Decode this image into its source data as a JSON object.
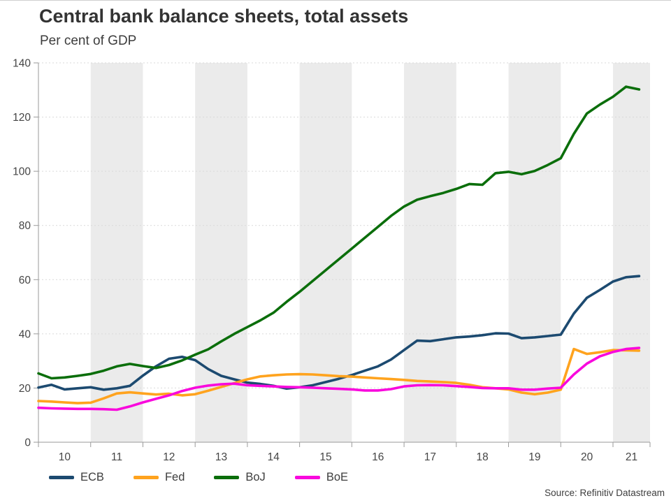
{
  "chart": {
    "title": "Central bank balance sheets, total assets",
    "subtitle": "Per cent of GDP",
    "source": "Source: Refinitiv Datastream"
  },
  "chart_data": {
    "type": "line",
    "title": "Central bank balance sheets, total assets",
    "subtitle": "Per cent of GDP",
    "xlabel": "",
    "ylabel": "Per cent of GDP",
    "ylim": [
      0,
      140
    ],
    "y_ticks": [
      0,
      20,
      40,
      60,
      80,
      100,
      120,
      140
    ],
    "x_tick_labels": [
      "10",
      "11",
      "12",
      "13",
      "14",
      "15",
      "16",
      "17",
      "18",
      "19",
      "20",
      "21"
    ],
    "xlim": [
      2010,
      2021.71
    ],
    "shaded_years": [
      2011,
      2013,
      2015,
      2017,
      2019,
      2021
    ],
    "grid": "horizontal-dashed",
    "legend_position": "bottom-left",
    "colors": {
      "band": "#ebebeb",
      "gridline": "#d9d9d9",
      "axis": "#9a9a9a",
      "text": "#454545"
    },
    "x": [
      2010,
      2010.25,
      2010.5,
      2010.75,
      2011,
      2011.25,
      2011.5,
      2011.75,
      2012,
      2012.25,
      2012.5,
      2012.75,
      2013,
      2013.25,
      2013.5,
      2013.75,
      2014,
      2014.25,
      2014.5,
      2014.75,
      2015,
      2015.25,
      2015.5,
      2015.75,
      2016,
      2016.25,
      2016.5,
      2016.75,
      2017,
      2017.25,
      2017.5,
      2017.75,
      2018,
      2018.25,
      2018.5,
      2018.75,
      2019,
      2019.25,
      2019.5,
      2019.75,
      2020,
      2020.25,
      2020.5,
      2020.75,
      2021,
      2021.25,
      2021.5
    ],
    "series": [
      {
        "name": "ECB",
        "color": "#1c4a70",
        "values": [
          20.2,
          21.2,
          19.5,
          19.9,
          20.3,
          19.4,
          19.9,
          20.8,
          24.6,
          28.0,
          30.8,
          31.5,
          30.3,
          27.0,
          24.5,
          23.2,
          22.0,
          21.5,
          20.8,
          19.8,
          20.3,
          21.0,
          22.2,
          23.4,
          24.8,
          26.4,
          28.0,
          30.5,
          34.0,
          37.5,
          37.3,
          38.0,
          38.7,
          39.0,
          39.5,
          40.2,
          40.1,
          38.4,
          38.7,
          39.2,
          39.7,
          47.5,
          53.3,
          56.2,
          59.3,
          60.9,
          61.3
        ]
      },
      {
        "name": "Fed",
        "color": "#ffa31e",
        "values": [
          15.2,
          15.0,
          14.7,
          14.4,
          14.6,
          16.2,
          18.0,
          18.4,
          18.0,
          17.6,
          17.9,
          17.3,
          17.7,
          19.0,
          20.4,
          21.8,
          23.2,
          24.3,
          24.7,
          25.0,
          25.1,
          25.0,
          24.7,
          24.4,
          24.2,
          23.9,
          23.6,
          23.3,
          23.0,
          22.6,
          22.4,
          22.2,
          21.9,
          21.2,
          20.3,
          19.9,
          19.5,
          18.3,
          17.7,
          18.3,
          19.4,
          34.4,
          32.6,
          33.2,
          34.0,
          33.9,
          33.8
        ]
      },
      {
        "name": "BoJ",
        "color": "#0b6e0b",
        "values": [
          25.4,
          23.6,
          23.9,
          24.5,
          25.2,
          26.4,
          28.0,
          28.9,
          28.1,
          27.4,
          28.5,
          30.2,
          32.3,
          34.3,
          37.2,
          40.0,
          42.5,
          45.0,
          47.8,
          51.8,
          55.5,
          59.5,
          63.5,
          67.5,
          71.5,
          75.5,
          79.5,
          83.5,
          87.0,
          89.5,
          90.8,
          92.0,
          93.5,
          95.3,
          95.0,
          99.3,
          99.8,
          98.9,
          100.1,
          102.3,
          104.8,
          113.8,
          121.3,
          124.6,
          127.5,
          131.2,
          130.2
        ]
      },
      {
        "name": "BoE",
        "color": "#f908dd",
        "values": [
          12.7,
          12.5,
          12.4,
          12.3,
          12.3,
          12.2,
          12.0,
          13.2,
          14.7,
          16.0,
          17.3,
          18.9,
          20.1,
          20.9,
          21.4,
          21.6,
          21.0,
          20.8,
          20.6,
          20.4,
          20.3,
          20.1,
          19.9,
          19.7,
          19.5,
          19.1,
          19.1,
          19.6,
          20.6,
          21.0,
          21.1,
          21.0,
          20.7,
          20.4,
          20.0,
          19.9,
          19.9,
          19.4,
          19.4,
          19.8,
          20.1,
          25.0,
          29.0,
          31.7,
          33.3,
          34.4,
          34.8
        ]
      }
    ]
  }
}
